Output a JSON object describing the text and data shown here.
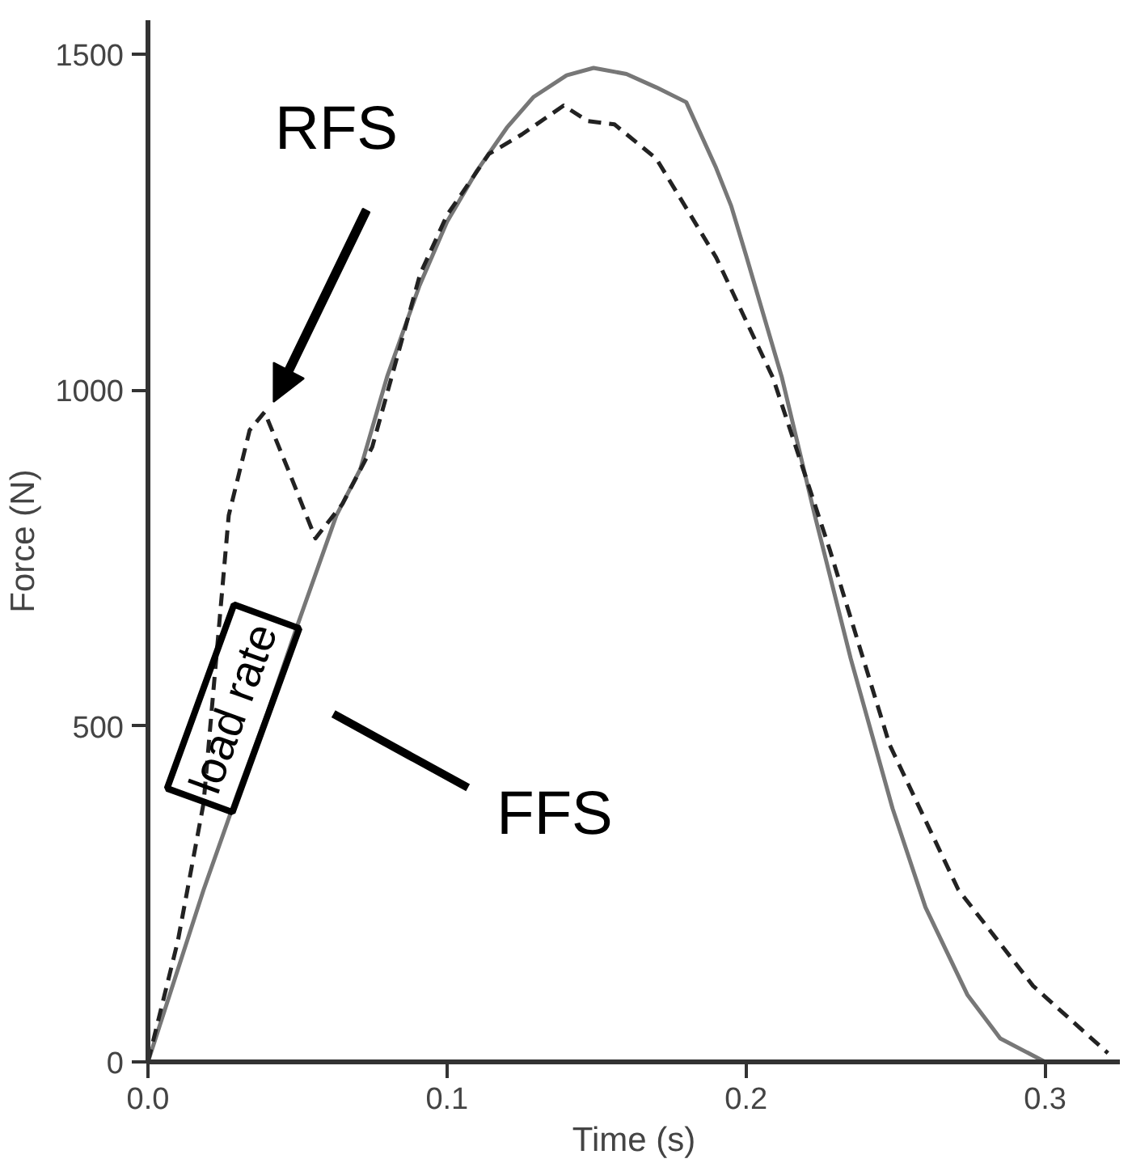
{
  "chart_data": {
    "type": "line",
    "xlabel": "Time (s)",
    "ylabel": "Force (N)",
    "xlim": [
      0,
      0.325
    ],
    "ylim": [
      0,
      1550
    ],
    "xticks": [
      {
        "value": 0,
        "label": "0.0"
      },
      0.1,
      0.2,
      0.3
    ],
    "yticks": [
      0,
      500,
      1000,
      1500
    ],
    "grid": false,
    "series": [
      {
        "color": "#777777",
        "line_style": "solid",
        "x": [
          0,
          0.0186,
          0.03,
          0.04,
          0.05,
          0.063,
          0.071,
          0.08,
          0.0907,
          0.1,
          0.11,
          0.12,
          0.129,
          0.14,
          0.149,
          0.16,
          0.17,
          0.18,
          0.19,
          0.195,
          0.2,
          0.212,
          0.223,
          0.235,
          0.249,
          0.26,
          0.274,
          0.285,
          0.3
        ],
        "values": [
          0,
          256,
          400,
          520,
          650,
          813,
          882,
          1020,
          1154,
          1250,
          1326,
          1390,
          1436,
          1468,
          1479,
          1470,
          1450,
          1428,
          1330,
          1274,
          1200,
          1018,
          813,
          600,
          377,
          230,
          100,
          35,
          0
        ]
      },
      {
        "color": "#222222",
        "line_style": "dashed",
        "x": [
          0,
          0.01,
          0.0186,
          0.027,
          0.034,
          0.039,
          0.047,
          0.056,
          0.065,
          0.075,
          0.091,
          0.1,
          0.114,
          0.125,
          0.139,
          0.147,
          0.156,
          0.17,
          0.19,
          0.209,
          0.228,
          0.248,
          0.271,
          0.296,
          0.321
        ],
        "values": [
          0,
          180,
          385,
          813,
          940,
          967,
          880,
          779,
          830,
          915,
          1172,
          1260,
          1351,
          1380,
          1423,
          1400,
          1395,
          1344,
          1197,
          1018,
          762,
          472,
          256,
          113,
          13
        ]
      }
    ],
    "annotations": [
      "RFS",
      "FFS",
      "load rate"
    ]
  }
}
